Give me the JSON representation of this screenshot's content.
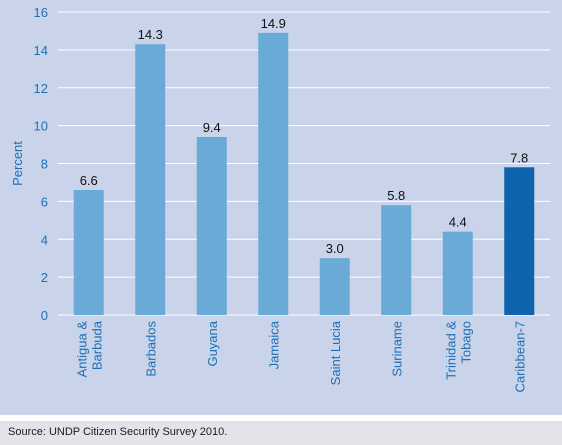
{
  "chart_data": {
    "type": "bar",
    "ylabel": "Percent",
    "xlabel": "",
    "ylim": [
      0,
      16
    ],
    "yticks": [
      0,
      2,
      4,
      6,
      8,
      10,
      12,
      14,
      16
    ],
    "grid": true,
    "categories": [
      [
        "Antigua &",
        "Barbuda"
      ],
      [
        "Barbados"
      ],
      [
        "Guyana"
      ],
      [
        "Jamaica"
      ],
      [
        "Saint Lucia"
      ],
      [
        "Suriname"
      ],
      [
        "Trinidad &",
        "Tobago"
      ],
      [
        "Caribbean-7"
      ]
    ],
    "values": [
      6.6,
      14.3,
      9.4,
      14.9,
      3.0,
      5.8,
      4.4,
      7.8
    ],
    "value_labels": [
      "6.6",
      "14.3",
      "9.4",
      "14.9",
      "3.0",
      "5.8",
      "4.4",
      "7.8"
    ],
    "colors": {
      "bar": "#6aaad6",
      "highlight_bar": "#0e64ad",
      "highlight_index": 7,
      "axis_text": "#1f6fb5",
      "grid": "#ffffff",
      "panel": "#c9d4ea"
    }
  },
  "source": "Source: UNDP Citizen Security Survey 2010."
}
